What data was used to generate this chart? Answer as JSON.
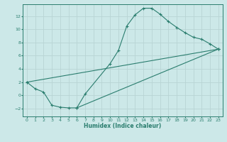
{
  "title": "",
  "xlabel": "Humidex (Indice chaleur)",
  "ylabel": "",
  "background_color": "#cce8e8",
  "grid_color": "#b8d4d4",
  "line_color": "#2a7d6e",
  "xlim": [
    -0.5,
    23.5
  ],
  "ylim": [
    -3.2,
    13.8
  ],
  "xticks": [
    0,
    1,
    2,
    3,
    4,
    5,
    6,
    7,
    8,
    9,
    10,
    11,
    12,
    13,
    14,
    15,
    16,
    17,
    18,
    19,
    20,
    21,
    22,
    23
  ],
  "yticks": [
    -2,
    0,
    2,
    4,
    6,
    8,
    10,
    12
  ],
  "line1_x": [
    0,
    1,
    2,
    3,
    4,
    5,
    6,
    7,
    10,
    11,
    12,
    13,
    14,
    15,
    16,
    17,
    18,
    19,
    20,
    21,
    22,
    23
  ],
  "line1_y": [
    2.0,
    1.0,
    0.5,
    -1.5,
    -1.8,
    -1.9,
    -1.9,
    0.2,
    4.8,
    6.8,
    10.5,
    12.2,
    13.2,
    13.2,
    12.3,
    11.2,
    10.3,
    9.5,
    8.8,
    8.5,
    7.8,
    7.0
  ],
  "line2_x": [
    0,
    23
  ],
  "line2_y": [
    2.0,
    7.0
  ],
  "line3_x": [
    6,
    23
  ],
  "line3_y": [
    -1.9,
    7.0
  ],
  "marker": "+"
}
